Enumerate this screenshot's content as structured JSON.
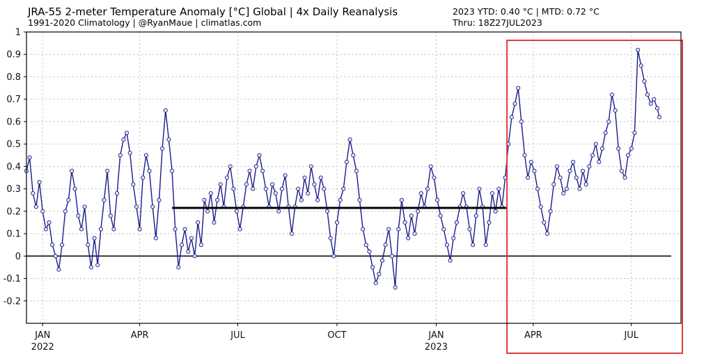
{
  "header": {
    "title": "JRA-55 2-meter Temperature Anomaly [°C] Global | 4x Daily Reanalysis",
    "subtitle": "1991-2020 Climatology | @RyanMaue | climatlas.com",
    "ytd": "2023 YTD: 0.40 °C | MTD: 0.72 °C",
    "thru": "Thru: 18Z27JUL2023"
  },
  "colors": {
    "series": "#1a1a8c",
    "marker_fill": "#e4e6f4",
    "zero_line": "#000000",
    "mean_line": "#000000",
    "highlight_box": "#e03a3a"
  },
  "chart_data": {
    "type": "line",
    "title": "JRA-55 2-meter Temperature Anomaly [°C] Global | 4x Daily Reanalysis",
    "ylabel": "",
    "xlabel": "",
    "ylim": [
      -0.3,
      1.0
    ],
    "xlim": [
      "2021-12-17",
      "2023-08-16"
    ],
    "yticks": [
      1,
      0.9,
      0.8,
      0.7,
      0.6,
      0.5,
      0.4,
      0.3,
      0.2,
      0.1,
      0,
      -0.1,
      -0.2
    ],
    "ytick_labels": [
      "1",
      "0.9",
      "0.8",
      "0.7",
      "0.6",
      "0.5",
      "0.4",
      "0.3",
      "0.2",
      "0.1",
      "0",
      "-0.1",
      "-0.2"
    ],
    "xticks": [
      {
        "date": "2022-01-01",
        "label": "JAN",
        "year": "2022"
      },
      {
        "date": "2022-04-01",
        "label": "APR",
        "year": ""
      },
      {
        "date": "2022-07-01",
        "label": "JUL",
        "year": ""
      },
      {
        "date": "2022-10-01",
        "label": "OCT",
        "year": ""
      },
      {
        "date": "2023-01-01",
        "label": "JAN",
        "year": "2023"
      },
      {
        "date": "2023-04-01",
        "label": "APR",
        "year": ""
      },
      {
        "date": "2023-07-01",
        "label": "JUL",
        "year": ""
      }
    ],
    "grid": true,
    "zero_line": true,
    "reference_line": {
      "x_start": "2022-05-01",
      "x_end": "2023-03-07",
      "y": 0.215
    },
    "highlight_region": {
      "x_start": "2023-03-07",
      "x_end": "2023-08-16"
    },
    "series": [
      {
        "points": [
          [
            "2021-12-17",
            0.38
          ],
          [
            "2021-12-20",
            0.44
          ],
          [
            "2021-12-23",
            0.28
          ],
          [
            "2021-12-26",
            0.22
          ],
          [
            "2021-12-29",
            0.33
          ],
          [
            "2022-01-01",
            0.2
          ],
          [
            "2022-01-04",
            0.12
          ],
          [
            "2022-01-07",
            0.15
          ],
          [
            "2022-01-10",
            0.05
          ],
          [
            "2022-01-13",
            0.0
          ],
          [
            "2022-01-16",
            -0.06
          ],
          [
            "2022-01-19",
            0.05
          ],
          [
            "2022-01-22",
            0.2
          ],
          [
            "2022-01-25",
            0.25
          ],
          [
            "2022-01-28",
            0.38
          ],
          [
            "2022-01-31",
            0.3
          ],
          [
            "2022-02-03",
            0.18
          ],
          [
            "2022-02-06",
            0.12
          ],
          [
            "2022-02-09",
            0.22
          ],
          [
            "2022-02-12",
            0.05
          ],
          [
            "2022-02-15",
            -0.05
          ],
          [
            "2022-02-18",
            0.08
          ],
          [
            "2022-02-21",
            -0.04
          ],
          [
            "2022-02-24",
            0.12
          ],
          [
            "2022-02-27",
            0.25
          ],
          [
            "2022-03-02",
            0.38
          ],
          [
            "2022-03-05",
            0.18
          ],
          [
            "2022-03-08",
            0.12
          ],
          [
            "2022-03-11",
            0.28
          ],
          [
            "2022-03-14",
            0.45
          ],
          [
            "2022-03-17",
            0.52
          ],
          [
            "2022-03-20",
            0.55
          ],
          [
            "2022-03-23",
            0.46
          ],
          [
            "2022-03-26",
            0.32
          ],
          [
            "2022-03-29",
            0.22
          ],
          [
            "2022-04-01",
            0.12
          ],
          [
            "2022-04-04",
            0.35
          ],
          [
            "2022-04-07",
            0.45
          ],
          [
            "2022-04-10",
            0.38
          ],
          [
            "2022-04-13",
            0.22
          ],
          [
            "2022-04-16",
            0.08
          ],
          [
            "2022-04-19",
            0.25
          ],
          [
            "2022-04-22",
            0.48
          ],
          [
            "2022-04-25",
            0.65
          ],
          [
            "2022-04-28",
            0.52
          ],
          [
            "2022-05-01",
            0.38
          ],
          [
            "2022-05-04",
            0.12
          ],
          [
            "2022-05-07",
            -0.05
          ],
          [
            "2022-05-10",
            0.05
          ],
          [
            "2022-05-13",
            0.12
          ],
          [
            "2022-05-16",
            0.02
          ],
          [
            "2022-05-19",
            0.08
          ],
          [
            "2022-05-22",
            0.0
          ],
          [
            "2022-05-25",
            0.15
          ],
          [
            "2022-05-28",
            0.05
          ],
          [
            "2022-05-31",
            0.25
          ],
          [
            "2022-06-03",
            0.2
          ],
          [
            "2022-06-06",
            0.28
          ],
          [
            "2022-06-09",
            0.15
          ],
          [
            "2022-06-12",
            0.25
          ],
          [
            "2022-06-15",
            0.32
          ],
          [
            "2022-06-18",
            0.22
          ],
          [
            "2022-06-21",
            0.35
          ],
          [
            "2022-06-24",
            0.4
          ],
          [
            "2022-06-27",
            0.3
          ],
          [
            "2022-06-30",
            0.2
          ],
          [
            "2022-07-03",
            0.12
          ],
          [
            "2022-07-06",
            0.22
          ],
          [
            "2022-07-09",
            0.32
          ],
          [
            "2022-07-12",
            0.38
          ],
          [
            "2022-07-15",
            0.3
          ],
          [
            "2022-07-18",
            0.4
          ],
          [
            "2022-07-21",
            0.45
          ],
          [
            "2022-07-24",
            0.38
          ],
          [
            "2022-07-27",
            0.3
          ],
          [
            "2022-07-30",
            0.22
          ],
          [
            "2022-08-02",
            0.32
          ],
          [
            "2022-08-05",
            0.28
          ],
          [
            "2022-08-08",
            0.2
          ],
          [
            "2022-08-11",
            0.3
          ],
          [
            "2022-08-14",
            0.36
          ],
          [
            "2022-08-17",
            0.22
          ],
          [
            "2022-08-20",
            0.1
          ],
          [
            "2022-08-23",
            0.22
          ],
          [
            "2022-08-26",
            0.3
          ],
          [
            "2022-08-29",
            0.25
          ],
          [
            "2022-09-01",
            0.35
          ],
          [
            "2022-09-04",
            0.28
          ],
          [
            "2022-09-07",
            0.4
          ],
          [
            "2022-09-10",
            0.32
          ],
          [
            "2022-09-13",
            0.25
          ],
          [
            "2022-09-16",
            0.35
          ],
          [
            "2022-09-19",
            0.3
          ],
          [
            "2022-09-22",
            0.2
          ],
          [
            "2022-09-25",
            0.08
          ],
          [
            "2022-09-28",
            0.0
          ],
          [
            "2022-10-01",
            0.15
          ],
          [
            "2022-10-04",
            0.25
          ],
          [
            "2022-10-07",
            0.3
          ],
          [
            "2022-10-10",
            0.42
          ],
          [
            "2022-10-13",
            0.52
          ],
          [
            "2022-10-16",
            0.45
          ],
          [
            "2022-10-19",
            0.38
          ],
          [
            "2022-10-22",
            0.25
          ],
          [
            "2022-10-25",
            0.12
          ],
          [
            "2022-10-28",
            0.05
          ],
          [
            "2022-10-31",
            0.02
          ],
          [
            "2022-11-03",
            -0.05
          ],
          [
            "2022-11-06",
            -0.12
          ],
          [
            "2022-11-09",
            -0.08
          ],
          [
            "2022-11-12",
            -0.02
          ],
          [
            "2022-11-15",
            0.05
          ],
          [
            "2022-11-18",
            0.12
          ],
          [
            "2022-11-21",
            0.0
          ],
          [
            "2022-11-24",
            -0.14
          ],
          [
            "2022-11-27",
            0.12
          ],
          [
            "2022-11-30",
            0.25
          ],
          [
            "2022-12-03",
            0.15
          ],
          [
            "2022-12-06",
            0.08
          ],
          [
            "2022-12-09",
            0.18
          ],
          [
            "2022-12-12",
            0.1
          ],
          [
            "2022-12-15",
            0.2
          ],
          [
            "2022-12-18",
            0.28
          ],
          [
            "2022-12-21",
            0.22
          ],
          [
            "2022-12-24",
            0.3
          ],
          [
            "2022-12-27",
            0.4
          ],
          [
            "2022-12-30",
            0.35
          ],
          [
            "2023-01-02",
            0.25
          ],
          [
            "2023-01-05",
            0.18
          ],
          [
            "2023-01-08",
            0.12
          ],
          [
            "2023-01-11",
            0.05
          ],
          [
            "2023-01-14",
            -0.02
          ],
          [
            "2023-01-17",
            0.08
          ],
          [
            "2023-01-20",
            0.15
          ],
          [
            "2023-01-23",
            0.22
          ],
          [
            "2023-01-26",
            0.28
          ],
          [
            "2023-01-29",
            0.22
          ],
          [
            "2023-02-01",
            0.12
          ],
          [
            "2023-02-04",
            0.05
          ],
          [
            "2023-02-07",
            0.18
          ],
          [
            "2023-02-10",
            0.3
          ],
          [
            "2023-02-13",
            0.22
          ],
          [
            "2023-02-16",
            0.05
          ],
          [
            "2023-02-19",
            0.15
          ],
          [
            "2023-02-22",
            0.28
          ],
          [
            "2023-02-25",
            0.2
          ],
          [
            "2023-02-28",
            0.3
          ],
          [
            "2023-03-03",
            0.22
          ],
          [
            "2023-03-06",
            0.35
          ],
          [
            "2023-03-09",
            0.5
          ],
          [
            "2023-03-12",
            0.62
          ],
          [
            "2023-03-15",
            0.68
          ],
          [
            "2023-03-18",
            0.75
          ],
          [
            "2023-03-21",
            0.6
          ],
          [
            "2023-03-24",
            0.45
          ],
          [
            "2023-03-27",
            0.35
          ],
          [
            "2023-03-30",
            0.42
          ],
          [
            "2023-04-02",
            0.38
          ],
          [
            "2023-04-05",
            0.3
          ],
          [
            "2023-04-08",
            0.22
          ],
          [
            "2023-04-11",
            0.15
          ],
          [
            "2023-04-14",
            0.1
          ],
          [
            "2023-04-17",
            0.2
          ],
          [
            "2023-04-20",
            0.32
          ],
          [
            "2023-04-23",
            0.4
          ],
          [
            "2023-04-26",
            0.35
          ],
          [
            "2023-04-29",
            0.28
          ],
          [
            "2023-05-02",
            0.3
          ],
          [
            "2023-05-05",
            0.38
          ],
          [
            "2023-05-08",
            0.42
          ],
          [
            "2023-05-11",
            0.35
          ],
          [
            "2023-05-14",
            0.3
          ],
          [
            "2023-05-17",
            0.38
          ],
          [
            "2023-05-20",
            0.32
          ],
          [
            "2023-05-23",
            0.4
          ],
          [
            "2023-05-26",
            0.45
          ],
          [
            "2023-05-29",
            0.5
          ],
          [
            "2023-06-01",
            0.42
          ],
          [
            "2023-06-04",
            0.48
          ],
          [
            "2023-06-07",
            0.55
          ],
          [
            "2023-06-10",
            0.6
          ],
          [
            "2023-06-13",
            0.72
          ],
          [
            "2023-06-16",
            0.65
          ],
          [
            "2023-06-19",
            0.48
          ],
          [
            "2023-06-22",
            0.38
          ],
          [
            "2023-06-25",
            0.35
          ],
          [
            "2023-06-28",
            0.45
          ],
          [
            "2023-07-01",
            0.48
          ],
          [
            "2023-07-04",
            0.55
          ],
          [
            "2023-07-07",
            0.92
          ],
          [
            "2023-07-10",
            0.85
          ],
          [
            "2023-07-13",
            0.78
          ],
          [
            "2023-07-16",
            0.72
          ],
          [
            "2023-07-19",
            0.68
          ],
          [
            "2023-07-22",
            0.7
          ],
          [
            "2023-07-25",
            0.66
          ],
          [
            "2023-07-27",
            0.62
          ]
        ]
      }
    ]
  }
}
